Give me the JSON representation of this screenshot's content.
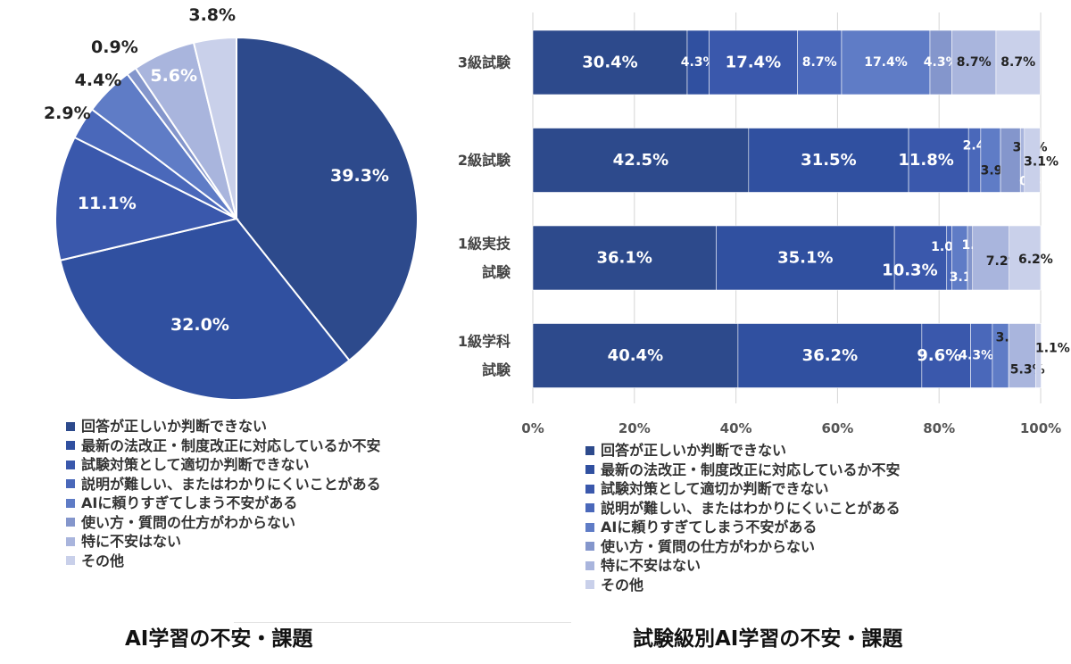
{
  "colors": [
    "#2d4a8c",
    "#3050a0",
    "#3a58ac",
    "#4a68ba",
    "#5f7cc6",
    "#8496cc",
    "#a9b5dd",
    "#c9d0ea"
  ],
  "chart_data": [
    {
      "type": "pie",
      "title": "AI学習の不安・課題",
      "legend": [
        "回答が正しいか判断できない",
        "最新の法改正・制度改正に対応しているか不安",
        "試験対策として適切か判断できない",
        "説明が難しい、またはわかりにくいことがある",
        "AIに頼りすぎてしまう不安がある",
        "使い方・質問の仕方がわからない",
        "特に不安はない",
        "その他"
      ],
      "values": [
        39.3,
        32.0,
        11.1,
        2.9,
        4.4,
        0.9,
        5.6,
        3.8
      ],
      "labels": [
        "39.3%",
        "32.0%",
        "11.1%",
        "2.9%",
        "4.4%",
        "0.9%",
        "5.6%",
        "3.8%"
      ],
      "legend_position": "bottom-left"
    },
    {
      "type": "bar",
      "orientation": "horizontal",
      "stacked": true,
      "title": "試験級別AI学習の不安・課題",
      "categories": [
        "3級試験",
        "2級試験",
        "1級実技試験",
        "1級学科試験"
      ],
      "category_lines": [
        [
          "3級試験"
        ],
        [
          "2級試験"
        ],
        [
          "1級実技",
          "試験"
        ],
        [
          "1級学科",
          "試験"
        ]
      ],
      "xticks": [
        "0%",
        "20%",
        "40%",
        "60%",
        "80%",
        "100%"
      ],
      "xlim": [
        0,
        100
      ],
      "series": [
        {
          "name": "回答が正しいか判断できない",
          "values": [
            30.4,
            42.5,
            36.1,
            40.4
          ],
          "labels": [
            "30.4%",
            "42.5%",
            "36.1%",
            "40.4%"
          ]
        },
        {
          "name": "最新の法改正・制度改正に対応しているか不安",
          "values": [
            4.3,
            31.5,
            35.1,
            36.2
          ],
          "labels": [
            "4.3%",
            "31.5%",
            "35.1%",
            "36.2%"
          ]
        },
        {
          "name": "試験対策として適切か判断できない",
          "values": [
            17.4,
            11.8,
            10.3,
            9.6
          ],
          "labels": [
            "17.4%",
            "11.8%",
            "10.3%",
            "9.6%"
          ]
        },
        {
          "name": "説明が難しい、またはわかりにくいことがある",
          "values": [
            8.7,
            2.4,
            1.0,
            4.3
          ],
          "labels": [
            "8.7%",
            "2.4%",
            "1.0%",
            "4.3%"
          ]
        },
        {
          "name": "AIに頼りすぎてしまう不安がある",
          "values": [
            17.4,
            3.9,
            3.1,
            3.2
          ],
          "labels": [
            "17.4%",
            "3.9%",
            "3.1%",
            "3.2%"
          ]
        },
        {
          "name": "使い方・質問の仕方がわからない",
          "values": [
            4.3,
            3.9,
            1.0,
            0.0
          ],
          "labels": [
            "4.3%",
            "3.9%",
            "1.0%",
            ""
          ]
        },
        {
          "name": "特に不安はない",
          "values": [
            8.7,
            0.8,
            7.2,
            5.3
          ],
          "labels": [
            "8.7%",
            "0.8%",
            "7.2%",
            "5.3%"
          ]
        },
        {
          "name": "その他",
          "values": [
            8.7,
            3.1,
            6.2,
            1.1
          ],
          "labels": [
            "8.7%",
            "3.1%",
            "6.2%",
            "1.1%"
          ]
        }
      ],
      "legend_position": "bottom"
    }
  ]
}
